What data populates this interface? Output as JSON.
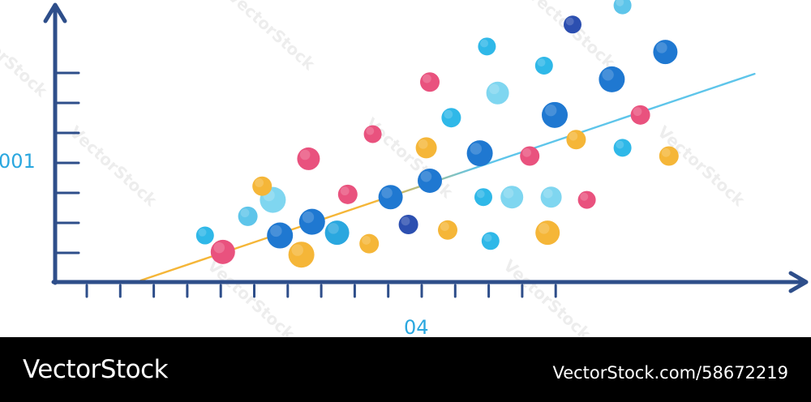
{
  "footer": {
    "brand": "VectorStock",
    "url": "VectorStock.com/58672219"
  },
  "watermark": "VectorStock",
  "colors": {
    "axis": "#2e4e8a",
    "tick_label": "#2aa7df",
    "trend_low": "#f5b638",
    "trend_high": "#5ec5ea"
  },
  "chart_data": {
    "type": "scatter",
    "title": "",
    "xlabel": "",
    "ylabel": "",
    "y_tick_label": "001",
    "x_tick_label": "04",
    "x_tick_count": 15,
    "y_tick_count": 7,
    "xlim": [
      0,
      100
    ],
    "ylim": [
      0,
      100
    ],
    "grid": false,
    "legend": "none",
    "trend_line": [
      [
        12,
        0.6
      ],
      [
        98,
        76
      ]
    ],
    "points": [
      {
        "x": 21,
        "y": 17,
        "size": 11,
        "color": "#2fb8e8"
      },
      {
        "x": 23.5,
        "y": 11,
        "size": 15,
        "color": "#e9527e"
      },
      {
        "x": 27,
        "y": 24,
        "size": 12,
        "color": "#5ec5ea"
      },
      {
        "x": 30.5,
        "y": 30,
        "size": 16,
        "color": "#7fd6f0"
      },
      {
        "x": 29,
        "y": 35,
        "size": 12,
        "color": "#f5b638"
      },
      {
        "x": 31.5,
        "y": 17,
        "size": 16,
        "color": "#1f78d1"
      },
      {
        "x": 34.5,
        "y": 10,
        "size": 16,
        "color": "#f5b638"
      },
      {
        "x": 35.5,
        "y": 45,
        "size": 14,
        "color": "#e9527e"
      },
      {
        "x": 36,
        "y": 22,
        "size": 16,
        "color": "#1f78d1"
      },
      {
        "x": 39.5,
        "y": 18,
        "size": 15,
        "color": "#2aa7df"
      },
      {
        "x": 41,
        "y": 32,
        "size": 12,
        "color": "#e9527e"
      },
      {
        "x": 44,
        "y": 14,
        "size": 12,
        "color": "#f5b638"
      },
      {
        "x": 44.5,
        "y": 54,
        "size": 11,
        "color": "#e9527e"
      },
      {
        "x": 47,
        "y": 31,
        "size": 15,
        "color": "#1f78d1"
      },
      {
        "x": 49.5,
        "y": 21,
        "size": 12,
        "color": "#2c4fb0"
      },
      {
        "x": 52,
        "y": 49,
        "size": 13,
        "color": "#f5b638"
      },
      {
        "x": 52.5,
        "y": 37,
        "size": 15,
        "color": "#1f78d1"
      },
      {
        "x": 52.5,
        "y": 73,
        "size": 12,
        "color": "#e9527e"
      },
      {
        "x": 55,
        "y": 19,
        "size": 12,
        "color": "#f5b638"
      },
      {
        "x": 55.5,
        "y": 60,
        "size": 12,
        "color": "#2fb8e8"
      },
      {
        "x": 59.5,
        "y": 47,
        "size": 16,
        "color": "#1f78d1"
      },
      {
        "x": 60,
        "y": 31,
        "size": 11,
        "color": "#2fb8e8"
      },
      {
        "x": 60.5,
        "y": 86,
        "size": 11,
        "color": "#2fb8e8"
      },
      {
        "x": 61,
        "y": 15,
        "size": 11,
        "color": "#2fb8e8"
      },
      {
        "x": 62,
        "y": 69,
        "size": 14,
        "color": "#7fd6f0"
      },
      {
        "x": 64,
        "y": 31,
        "size": 14,
        "color": "#7fd6f0"
      },
      {
        "x": 66.5,
        "y": 46,
        "size": 12,
        "color": "#e9527e"
      },
      {
        "x": 68.5,
        "y": 79,
        "size": 11,
        "color": "#2fb8e8"
      },
      {
        "x": 69,
        "y": 18,
        "size": 15,
        "color": "#f5b638"
      },
      {
        "x": 69.5,
        "y": 31,
        "size": 13,
        "color": "#7fd6f0"
      },
      {
        "x": 70,
        "y": 61,
        "size": 16,
        "color": "#1f78d1"
      },
      {
        "x": 72.5,
        "y": 94,
        "size": 11,
        "color": "#2c4fb0"
      },
      {
        "x": 73,
        "y": 52,
        "size": 12,
        "color": "#f5b638"
      },
      {
        "x": 74.5,
        "y": 30,
        "size": 11,
        "color": "#e9527e"
      },
      {
        "x": 78,
        "y": 74,
        "size": 16,
        "color": "#1f78d1"
      },
      {
        "x": 79.5,
        "y": 101,
        "size": 11,
        "color": "#5ec5ea"
      },
      {
        "x": 79.5,
        "y": 49,
        "size": 11,
        "color": "#2fb8e8"
      },
      {
        "x": 82,
        "y": 61,
        "size": 12,
        "color": "#e9527e"
      },
      {
        "x": 85.5,
        "y": 84,
        "size": 15,
        "color": "#1f78d1"
      },
      {
        "x": 86,
        "y": 46,
        "size": 12,
        "color": "#f5b638"
      }
    ]
  }
}
